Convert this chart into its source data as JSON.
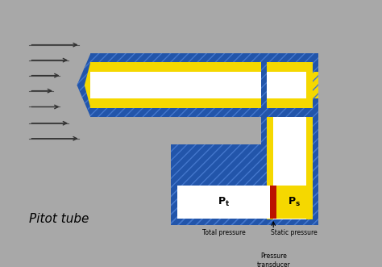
{
  "bg_color": "#a8a8a8",
  "blue_color": "#2255aa",
  "yellow_color": "#f5d800",
  "white_color": "#ffffff",
  "red_color": "#bb1100",
  "title": "Pitot tube",
  "label_total": "Total pressure",
  "label_static": "Static pressure",
  "label_transducer": "Pressure\ntransducer",
  "arrow_color": "#222222",
  "hatch_color": "#4477cc"
}
